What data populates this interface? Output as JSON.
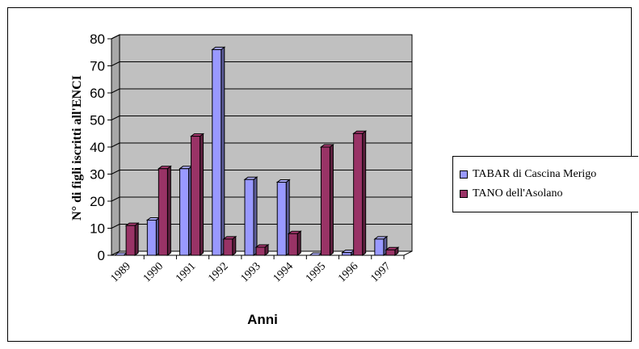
{
  "chart_data": {
    "type": "bar",
    "title": "",
    "xlabel": "Anni",
    "ylabel": "N° di figli iscritti all'ENCI",
    "ylim": [
      0,
      80
    ],
    "yticks": [
      "0",
      "10",
      "20",
      "30",
      "40",
      "50",
      "60",
      "70",
      "80"
    ],
    "categories": [
      "1989",
      "1990",
      "1991",
      "1992",
      "1993",
      "1994",
      "1995",
      "1996",
      "1997"
    ],
    "series": [
      {
        "name": "TABAR di Cascina Merigo",
        "color": "#9999ff",
        "values": [
          0,
          13,
          32,
          76,
          28,
          27,
          0,
          1,
          6
        ]
      },
      {
        "name": "TANO dell'Asolano",
        "color": "#993366",
        "values": [
          11,
          32,
          44,
          6,
          3,
          8,
          40,
          45,
          2
        ]
      }
    ],
    "plot_background": "#c0c0c0",
    "grid": true,
    "legend_position": "right"
  }
}
